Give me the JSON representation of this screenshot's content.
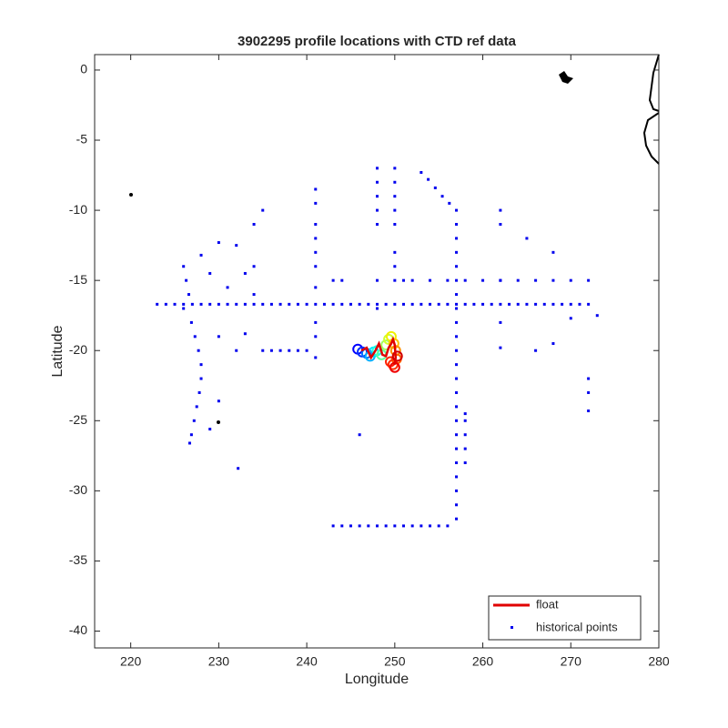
{
  "chart_data": {
    "type": "scatter",
    "title": "3902295 profile locations with CTD ref data",
    "xlabel": "Longitude",
    "ylabel": "Latitude",
    "xlim": [
      215.9,
      280
    ],
    "ylim": [
      -41.2,
      1.1
    ],
    "xticks": [
      220,
      230,
      240,
      250,
      260,
      270,
      280
    ],
    "yticks": [
      0,
      -5,
      -10,
      -15,
      -20,
      -25,
      -30,
      -35,
      -40
    ],
    "legend": "lower right",
    "series": [
      {
        "name": "float",
        "color": "#e00000",
        "style": "line",
        "x": [
          246.2,
          246.8,
          247.3,
          247.8,
          248.2,
          248.6,
          249,
          249.3,
          249.6,
          249.8,
          250,
          250.1,
          250,
          249.9
        ],
        "y": [
          -20,
          -19.8,
          -20.5,
          -20,
          -19.5,
          -20.3,
          -20.4,
          -19.8,
          -19.5,
          -19.2,
          -19.6,
          -20.5,
          -21,
          -20.8
        ]
      },
      {
        "name": "historical points",
        "color": "#0000ee",
        "style": "dot",
        "x": [
          223,
          224,
          225,
          226,
          227,
          228,
          229,
          230,
          231,
          232,
          233,
          234,
          235,
          236,
          237,
          238,
          239,
          240,
          241,
          242,
          243,
          244,
          245,
          246,
          247,
          248,
          249,
          250,
          251,
          252,
          253,
          254,
          255,
          256,
          257,
          258,
          259,
          260,
          261,
          262,
          263,
          264,
          265,
          266,
          267,
          268,
          269,
          270,
          271,
          272,
          257,
          257,
          257,
          257,
          257,
          257,
          257,
          257,
          257,
          257,
          257,
          257,
          257,
          257,
          257,
          257,
          257,
          257,
          257,
          257,
          257,
          257,
          257,
          243,
          244,
          245,
          246,
          247,
          248,
          249,
          250,
          251,
          252,
          253,
          254,
          255,
          256,
          253,
          253.8,
          254.6,
          255.4,
          256.2,
          241,
          241,
          241,
          241,
          241,
          241,
          241,
          241,
          241,
          241,
          226,
          226.3,
          226.6,
          226.9,
          227.3,
          227.7,
          228,
          228,
          227.8,
          227.5,
          227.2,
          226.9,
          226.7,
          250,
          251,
          252,
          254,
          256,
          258,
          260,
          262,
          264,
          266,
          268,
          270,
          272,
          235,
          236,
          237,
          238,
          239,
          240,
          248,
          248,
          248,
          248,
          248,
          248,
          248,
          250,
          250,
          250,
          250,
          250,
          250,
          250,
          262,
          262,
          262,
          262,
          262,
          272,
          272,
          272,
          258,
          258,
          258,
          258,
          258,
          235,
          234,
          233,
          234,
          234,
          232,
          230,
          228,
          229,
          231,
          230,
          232,
          233,
          230,
          229,
          232.2,
          246,
          265,
          268,
          266,
          268,
          270,
          273,
          244,
          243,
          226
        ],
        "y": [
          -16.7,
          -16.7,
          -16.7,
          -16.7,
          -16.7,
          -16.7,
          -16.7,
          -16.7,
          -16.7,
          -16.7,
          -16.7,
          -16.7,
          -16.7,
          -16.7,
          -16.7,
          -16.7,
          -16.7,
          -16.7,
          -16.7,
          -16.7,
          -16.7,
          -16.7,
          -16.7,
          -16.7,
          -16.7,
          -16.7,
          -16.7,
          -16.7,
          -16.7,
          -16.7,
          -16.7,
          -16.7,
          -16.7,
          -16.7,
          -16.7,
          -16.7,
          -16.7,
          -16.7,
          -16.7,
          -16.7,
          -16.7,
          -16.7,
          -16.7,
          -16.7,
          -16.7,
          -16.7,
          -16.7,
          -16.7,
          -16.7,
          -16.7,
          -10,
          -11,
          -12,
          -13,
          -14,
          -15,
          -16,
          -17,
          -18,
          -19,
          -20,
          -21,
          -22,
          -23,
          -24,
          -25,
          -26,
          -27,
          -28,
          -29,
          -30,
          -31,
          -32,
          -32.5,
          -32.5,
          -32.5,
          -32.5,
          -32.5,
          -32.5,
          -32.5,
          -32.5,
          -32.5,
          -32.5,
          -32.5,
          -32.5,
          -32.5,
          -32.5,
          -7.3,
          -7.8,
          -8.4,
          -9,
          -9.5,
          -8.5,
          -9.5,
          -11,
          -12,
          -13,
          -14,
          -15.5,
          -18,
          -19,
          -20.5,
          -14,
          -15,
          -16,
          -18,
          -19,
          -20,
          -21,
          -22,
          -23,
          -24,
          -25,
          -26,
          -26.6,
          -15,
          -15,
          -15,
          -15,
          -15,
          -15,
          -15,
          -15,
          -15,
          -15,
          -15,
          -15,
          -15,
          -20,
          -20,
          -20,
          -20,
          -20,
          -20,
          -7,
          -8,
          -9,
          -10,
          -11,
          -15,
          -17,
          -7,
          -8,
          -9,
          -10,
          -11,
          -13,
          -14,
          -10,
          -11,
          -15,
          -18,
          -19.8,
          -22,
          -23,
          -24.3,
          -24.5,
          -25,
          -26,
          -27,
          -28,
          -10,
          -11,
          -14.5,
          -14,
          -16,
          -12.5,
          -12.3,
          -13.2,
          -14.5,
          -15.5,
          -19,
          -20,
          -18.8,
          -23.6,
          -25.6,
          -28.4,
          -26,
          -12,
          -13,
          -20,
          -19.5,
          -17.7,
          -17.5,
          -15,
          -15,
          -17
        ]
      }
    ],
    "profiles": {
      "x": [
        245.8,
        246.3,
        246.8,
        247.2,
        247.6,
        248,
        248.5,
        249,
        249.3,
        249.6,
        249.9,
        250.1,
        250.2,
        249.8,
        249.5,
        250,
        250.3
      ],
      "y": [
        -19.9,
        -20.1,
        -20.2,
        -20.4,
        -20.1,
        -20,
        -20.3,
        -19.6,
        -19.2,
        -19,
        -19.5,
        -20,
        -20.6,
        -21,
        -20.8,
        -21.2,
        -20.4
      ],
      "colors": [
        "#0000ff",
        "#0030ff",
        "#0070ff",
        "#00b0ff",
        "#00e0ff",
        "#20ffe0",
        "#60ffa0",
        "#a0ff60",
        "#d0ff30",
        "#f0f000",
        "#ffc000",
        "#ff9000",
        "#ff6000",
        "#ff3000",
        "#ff2000",
        "#f00000",
        "#d00000"
      ]
    }
  }
}
